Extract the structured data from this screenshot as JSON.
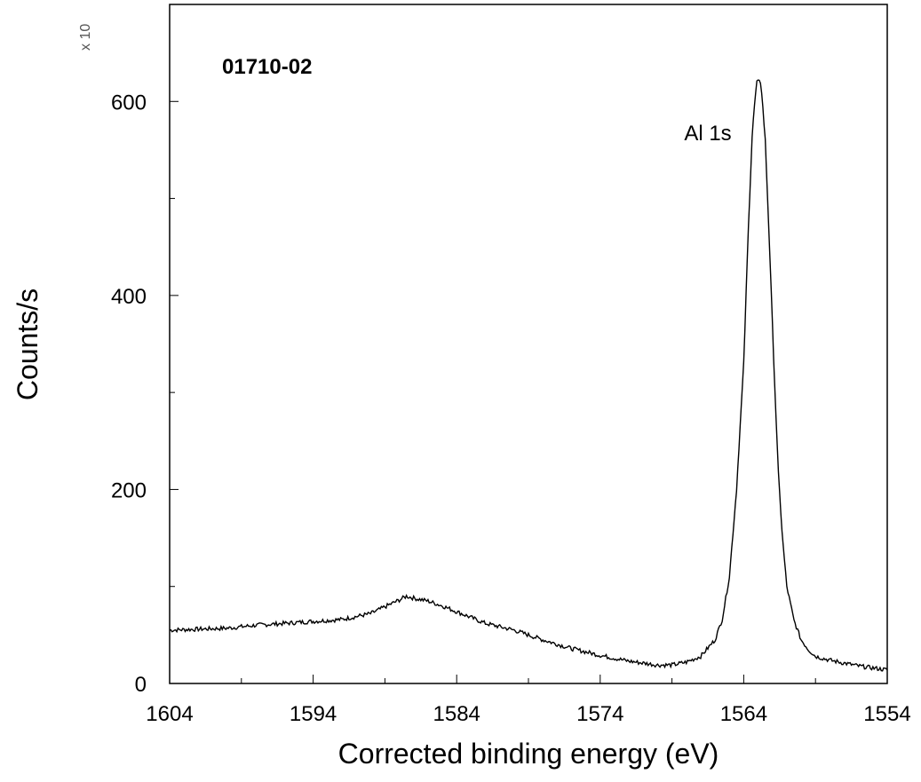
{
  "chart_data": {
    "type": "line",
    "title": "01710-02",
    "xlabel": "Corrected binding energy (eV)",
    "ylabel": "Counts/s",
    "y_multiplier": "x 10",
    "xlim": [
      1604,
      1554
    ],
    "x_reversed": true,
    "ylim": [
      0,
      700
    ],
    "x_ticks": [
      1604,
      1594,
      1584,
      1574,
      1564,
      1554
    ],
    "x_minor_ticks": [
      1599,
      1589,
      1579,
      1569,
      1559
    ],
    "y_ticks": [
      0,
      200,
      400,
      600
    ],
    "y_minor_ticks": [
      100,
      300,
      500
    ],
    "grid": false,
    "annotations": [
      {
        "text": "Al 1s",
        "x": 1566.5,
        "y": 560
      }
    ],
    "series": [
      {
        "x": [
          1604,
          1602,
          1600,
          1598,
          1596,
          1594,
          1592,
          1590,
          1589,
          1588,
          1587.5,
          1587,
          1586,
          1585,
          1584,
          1583,
          1582,
          1580,
          1578,
          1576,
          1574,
          1572,
          1570,
          1569,
          1568,
          1567,
          1566,
          1565.5,
          1565,
          1564.5,
          1564,
          1563.7,
          1563.4,
          1563.1,
          1562.8,
          1562.5,
          1562.2,
          1561.9,
          1561.6,
          1561.3,
          1561,
          1560.5,
          1560,
          1559.5,
          1559,
          1558,
          1557,
          1556,
          1555,
          1554
        ],
        "y": [
          55,
          56,
          57,
          60,
          62,
          64,
          66,
          72,
          79,
          86,
          90,
          88,
          85,
          80,
          74,
          68,
          62,
          55,
          45,
          36,
          29,
          23,
          19,
          19,
          22,
          28,
          45,
          66,
          110,
          200,
          330,
          460,
          570,
          620,
          620,
          560,
          450,
          330,
          220,
          150,
          100,
          65,
          45,
          35,
          28,
          24,
          21,
          18,
          16,
          14
        ]
      }
    ]
  }
}
